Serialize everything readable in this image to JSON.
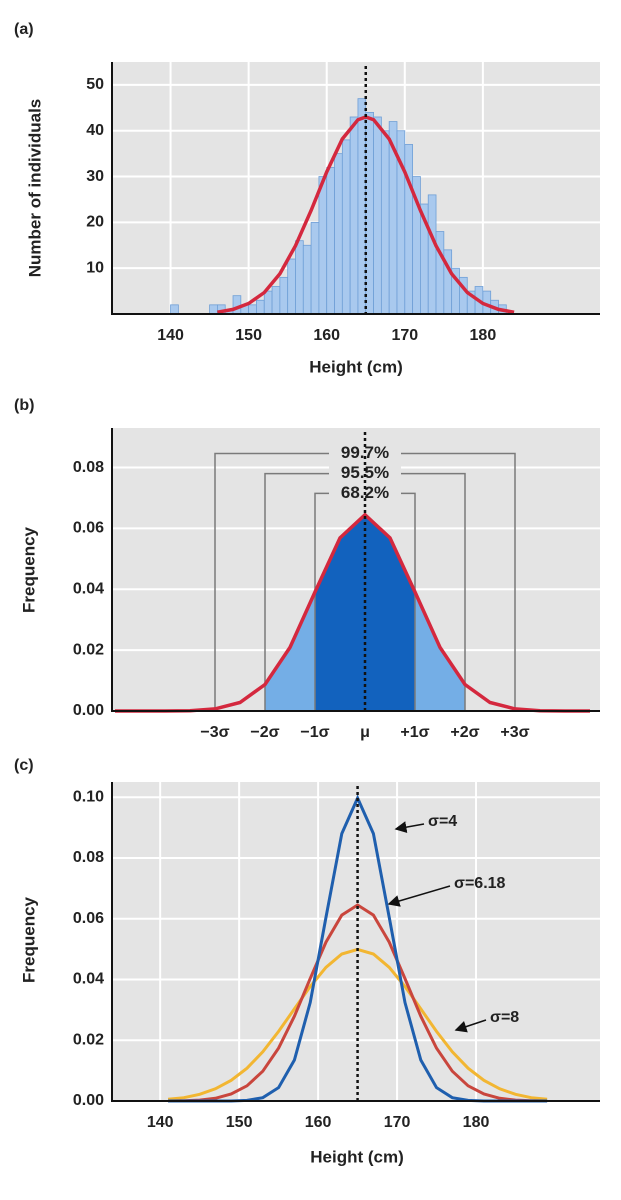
{
  "chart_data": [
    {
      "type": "histogram",
      "panel_label": "(a)",
      "x_label": "Height (cm)",
      "y_label": "Number of individuals",
      "bins": [
        140,
        141,
        142,
        143,
        144,
        145,
        146,
        147,
        148,
        149,
        150,
        151,
        152,
        153,
        154,
        155,
        156,
        157,
        158,
        159,
        160,
        161,
        162,
        163,
        164,
        165,
        166,
        167,
        168,
        169,
        170,
        171,
        172,
        173,
        174,
        175,
        176,
        177,
        178,
        179,
        180,
        181,
        182,
        183
      ],
      "values": [
        2,
        0,
        0,
        0,
        0,
        2,
        2,
        1,
        4,
        2,
        2,
        3,
        5,
        6,
        8,
        12,
        16,
        15,
        20,
        30,
        32,
        35,
        38,
        43,
        47,
        44,
        43,
        40,
        42,
        40,
        37,
        30,
        24,
        26,
        18,
        14,
        10,
        8,
        5,
        6,
        5,
        3,
        2
      ],
      "color": "#a9c9ee",
      "curve": {
        "color": "#d4283e",
        "x": [
          146,
          148,
          150,
          152,
          154,
          156,
          158,
          160,
          162,
          164,
          165,
          166,
          168,
          170,
          172,
          174,
          176,
          178,
          180,
          182,
          184
        ],
        "values": [
          0.4,
          1,
          2.3,
          4.7,
          8.8,
          14.9,
          22.6,
          31,
          38.2,
          42.4,
          43,
          42.4,
          38.2,
          31,
          22.6,
          14.9,
          8.8,
          4.7,
          2.3,
          1,
          0.4
        ]
      },
      "mean_line": 165,
      "grid": "both",
      "xlim": [
        132.5,
        195
      ],
      "xticks": [
        140,
        150,
        160,
        170,
        180
      ],
      "ylim": [
        0,
        55
      ],
      "yticks": [
        10,
        20,
        30,
        40,
        50
      ]
    },
    {
      "type": "area",
      "panel_label": "(b)",
      "y_label": "Frequency",
      "curve": {
        "color": "#d4283e",
        "x": [
          -5,
          -4.5,
          -4,
          -3.5,
          -3,
          -2.5,
          -2,
          -1.5,
          -1,
          -0.5,
          0,
          0.5,
          1,
          1.5,
          2,
          2.5,
          3,
          3.5,
          4,
          4.5
        ],
        "values": [
          0,
          0,
          0,
          0.0001,
          0.0007,
          0.0028,
          0.0087,
          0.0209,
          0.0391,
          0.0569,
          0.0645,
          0.0569,
          0.0391,
          0.0209,
          0.0087,
          0.0028,
          0.0007,
          0.0001,
          0,
          0
        ]
      },
      "bands": [
        {
          "from": -2,
          "to": 2,
          "color": "#74aee6"
        },
        {
          "from": -1,
          "to": 1,
          "color": "#1262be"
        }
      ],
      "brackets": [
        {
          "label": "99.7%",
          "from": -3,
          "to": 3,
          "height": 0.0846
        },
        {
          "label": "95.5%",
          "from": -2,
          "to": 2,
          "height": 0.078
        },
        {
          "label": "68.2%",
          "from": -1,
          "to": 1,
          "height": 0.0715
        }
      ],
      "mean_line": 0,
      "grid": "y",
      "xlim": [
        -5.06,
        4.7
      ],
      "xticks": [
        {
          "value": -3,
          "label": "−3σ"
        },
        {
          "value": -2,
          "label": "−2σ"
        },
        {
          "value": -1,
          "label": "−1σ"
        },
        {
          "value": 0,
          "label": "μ"
        },
        {
          "value": 1,
          "label": "+1σ"
        },
        {
          "value": 2,
          "label": "+2σ"
        },
        {
          "value": 3,
          "label": "+3σ"
        }
      ],
      "ylim": [
        0,
        0.093
      ],
      "yticks": [
        {
          "value": 0,
          "label": "0.00"
        },
        0.02,
        0.04,
        0.06,
        0.08
      ]
    },
    {
      "type": "line",
      "panel_label": "(c)",
      "x_label": "Height (cm)",
      "y_label": "Frequency",
      "x": [
        141,
        143,
        145,
        147,
        149,
        151,
        153,
        155,
        157,
        159,
        161,
        163,
        165,
        167,
        169,
        171,
        173,
        175,
        177,
        179,
        181,
        183,
        185,
        187,
        189
      ],
      "series": [
        {
          "name": "σ=4",
          "color": "#1f5fae",
          "values": [
            0,
            0,
            0,
            0,
            0,
            0.0002,
            0.0011,
            0.0044,
            0.0135,
            0.0324,
            0.0605,
            0.088,
            0.0997,
            0.088,
            0.0605,
            0.0324,
            0.0135,
            0.0044,
            0.0011,
            0.0002,
            0,
            0,
            0,
            0,
            0
          ]
        },
        {
          "name": "σ=6.18",
          "color": "#c9463d",
          "values": [
            0,
            0.0001,
            0.0003,
            0.0009,
            0.0023,
            0.005,
            0.0098,
            0.0174,
            0.0279,
            0.0403,
            0.0523,
            0.0612,
            0.0645,
            0.0612,
            0.0523,
            0.0403,
            0.0279,
            0.0174,
            0.0098,
            0.005,
            0.0023,
            0.0009,
            0.0003,
            0.0001,
            0
          ]
        },
        {
          "name": "σ=8",
          "color": "#f2b632",
          "values": [
            0.0006,
            0.0011,
            0.0022,
            0.004,
            0.0068,
            0.0108,
            0.0162,
            0.0229,
            0.0303,
            0.0377,
            0.044,
            0.0484,
            0.0499,
            0.0484,
            0.044,
            0.0377,
            0.0303,
            0.0229,
            0.0162,
            0.0108,
            0.0068,
            0.004,
            0.0022,
            0.0011,
            0.0006
          ]
        }
      ],
      "mean_line": 165,
      "grid": "both",
      "xlim": [
        133.9,
        195.7
      ],
      "xticks": [
        140,
        150,
        160,
        170,
        180
      ],
      "ylim": [
        0,
        0.105
      ],
      "yticks": [
        {
          "value": 0,
          "label": "0.00"
        },
        0.02,
        0.04,
        0.06,
        0.08,
        {
          "value": 0.1,
          "label": "0.10"
        }
      ]
    }
  ]
}
